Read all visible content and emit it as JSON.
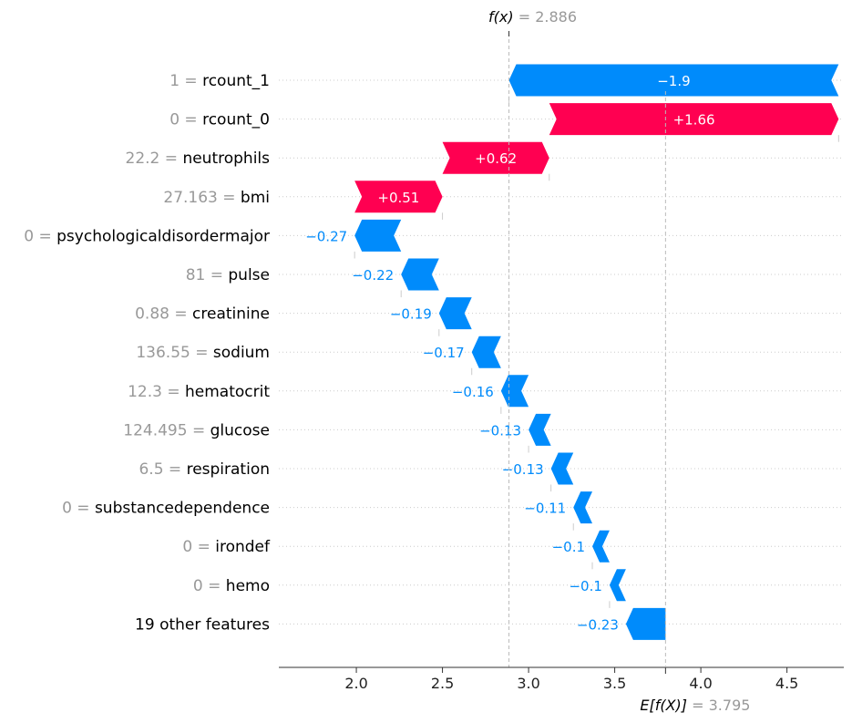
{
  "chart_data": {
    "type": "waterfall",
    "fx_label": "f(x)",
    "fx_value": 2.886,
    "fx_value_text": "2.886",
    "efx_label": "E[f(X)]",
    "efx_value": 3.795,
    "efx_value_text": "3.795",
    "xlim": [
      1.55,
      4.83
    ],
    "ticks": [
      2.0,
      2.5,
      3.0,
      3.5,
      4.0,
      4.5
    ],
    "tick_labels": [
      "2.0",
      "2.5",
      "3.0",
      "3.5",
      "4.0",
      "4.5"
    ],
    "colors": {
      "positive": "#ff0051",
      "negative": "#008bfb",
      "positive_text": "#ffffff",
      "negative_text": "#008bfb",
      "value_gray": "#999999"
    },
    "features": [
      {
        "value": "1",
        "name": "rcount_1",
        "label": "−1.9",
        "contribution": -1.9,
        "start": 4.8,
        "end": 2.886
      },
      {
        "value": "0",
        "name": "rcount_0",
        "label": "+1.66",
        "contribution": 1.66,
        "start": 3.12,
        "end": 4.8
      },
      {
        "value": "22.2",
        "name": "neutrophils",
        "label": "+0.62",
        "contribution": 0.62,
        "start": 2.5,
        "end": 3.12
      },
      {
        "value": "27.163",
        "name": "bmi",
        "label": "+0.51",
        "contribution": 0.51,
        "start": 1.99,
        "end": 2.5
      },
      {
        "value": "0",
        "name": "psychologicaldisordermajor",
        "label": "−0.27",
        "contribution": -0.27,
        "start": 2.26,
        "end": 1.99
      },
      {
        "value": "81",
        "name": "pulse",
        "label": "−0.22",
        "contribution": -0.22,
        "start": 2.48,
        "end": 2.26
      },
      {
        "value": "0.88",
        "name": "creatinine",
        "label": "−0.19",
        "contribution": -0.19,
        "start": 2.67,
        "end": 2.48
      },
      {
        "value": "136.55",
        "name": "sodium",
        "label": "−0.17",
        "contribution": -0.17,
        "start": 2.84,
        "end": 2.67
      },
      {
        "value": "12.3",
        "name": "hematocrit",
        "label": "−0.16",
        "contribution": -0.16,
        "start": 3.0,
        "end": 2.84
      },
      {
        "value": "124.495",
        "name": "glucose",
        "label": "−0.13",
        "contribution": -0.13,
        "start": 3.13,
        "end": 3.0
      },
      {
        "value": "6.5",
        "name": "respiration",
        "label": "−0.13",
        "contribution": -0.13,
        "start": 3.26,
        "end": 3.13
      },
      {
        "value": "0",
        "name": "substancedependence",
        "label": "−0.11",
        "contribution": -0.11,
        "start": 3.37,
        "end": 3.26
      },
      {
        "value": "0",
        "name": "irondef",
        "label": "−0.1",
        "contribution": -0.1,
        "start": 3.47,
        "end": 3.37
      },
      {
        "value": "0",
        "name": "hemo",
        "label": "−0.1",
        "contribution": -0.1,
        "start": 3.565,
        "end": 3.47
      },
      {
        "value": "",
        "name": "19 other features",
        "label": "−0.23",
        "contribution": -0.23,
        "start": 3.795,
        "end": 3.565
      }
    ]
  }
}
